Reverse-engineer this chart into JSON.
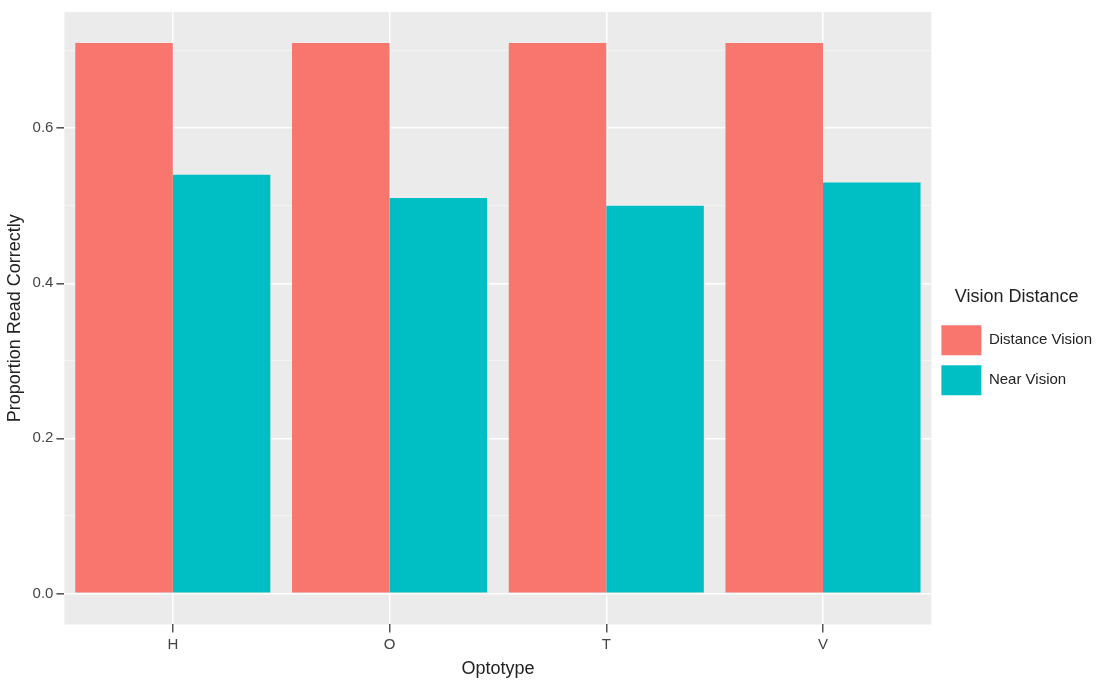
{
  "chart_data": {
    "type": "bar",
    "xlabel": "Optotype",
    "ylabel": "Proportion Read Correctly",
    "legend_title": "Vision Distance",
    "categories": [
      "H",
      "O",
      "T",
      "V"
    ],
    "series": [
      {
        "name": "Distance Vision",
        "color": "#f8766d",
        "values": [
          0.71,
          0.71,
          0.71,
          0.71
        ]
      },
      {
        "name": "Near Vision",
        "color": "#00bfc4",
        "values": [
          0.54,
          0.51,
          0.5,
          0.53
        ]
      }
    ],
    "ylim": [
      -0.04,
      0.75
    ],
    "yticks": [
      {
        "value": 0,
        "label": "0.0"
      },
      {
        "value": 0.1,
        "label": null
      },
      {
        "value": 0.2,
        "label": "0.2"
      },
      {
        "value": 0.3,
        "label": null
      },
      {
        "value": 0.4,
        "label": "0.4"
      },
      {
        "value": 0.5,
        "label": null
      },
      {
        "value": 0.6,
        "label": "0.6"
      },
      {
        "value": 0.7,
        "label": null
      }
    ],
    "grid": true,
    "legend": "right"
  }
}
